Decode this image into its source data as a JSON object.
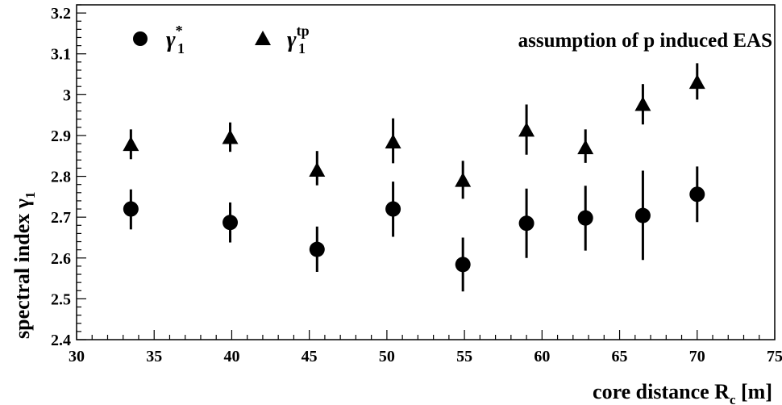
{
  "chart_data": {
    "type": "scatter",
    "title": "assumption of p induced EAS",
    "xlabel": {
      "main": "core distance R",
      "sub": "c",
      "unit": " [m]"
    },
    "ylabel": {
      "main": "spectral index γ",
      "sub": "1"
    },
    "xlim": [
      30,
      75
    ],
    "ylim": [
      2.4,
      3.22
    ],
    "x_ticks": [
      30,
      35,
      40,
      45,
      50,
      55,
      60,
      65,
      70,
      75
    ],
    "x_tick_labels": [
      "30",
      "35",
      "40",
      "45",
      "50",
      "55",
      "60",
      "65",
      "70",
      "75"
    ],
    "y_ticks": [
      2.4,
      2.5,
      2.6,
      2.7,
      2.8,
      2.9,
      3.0,
      3.1,
      3.2
    ],
    "y_tick_labels": [
      "2.4",
      "2.5",
      "2.6",
      "2.7",
      "2.8",
      "2.9",
      "3",
      "3.1",
      "3.2"
    ],
    "grid": false,
    "legend_position": "top-left",
    "series": [
      {
        "name": "γ*1",
        "legend": {
          "base": "γ",
          "sup": "*",
          "sub": "1"
        },
        "marker": "circle",
        "color": "#000000",
        "points": [
          {
            "x": 33.5,
            "y": 2.72,
            "err_low": 2.67,
            "err_high": 2.768
          },
          {
            "x": 39.9,
            "y": 2.687,
            "err_low": 2.638,
            "err_high": 2.736
          },
          {
            "x": 45.5,
            "y": 2.621,
            "err_low": 2.566,
            "err_high": 2.677
          },
          {
            "x": 50.4,
            "y": 2.72,
            "err_low": 2.652,
            "err_high": 2.787
          },
          {
            "x": 54.9,
            "y": 2.584,
            "err_low": 2.518,
            "err_high": 2.65
          },
          {
            "x": 59.0,
            "y": 2.685,
            "err_low": 2.6,
            "err_high": 2.77
          },
          {
            "x": 62.8,
            "y": 2.698,
            "err_low": 2.618,
            "err_high": 2.777
          },
          {
            "x": 66.5,
            "y": 2.704,
            "err_low": 2.595,
            "err_high": 2.814
          },
          {
            "x": 70.0,
            "y": 2.756,
            "err_low": 2.688,
            "err_high": 2.824
          }
        ]
      },
      {
        "name": "γtp1",
        "legend": {
          "base": "γ",
          "sup": "tp",
          "sub": "1"
        },
        "marker": "triangle",
        "color": "#000000",
        "points": [
          {
            "x": 33.5,
            "y": 2.876,
            "err_low": 2.842,
            "err_high": 2.915
          },
          {
            "x": 39.9,
            "y": 2.893,
            "err_low": 2.86,
            "err_high": 2.932
          },
          {
            "x": 45.5,
            "y": 2.813,
            "err_low": 2.778,
            "err_high": 2.862
          },
          {
            "x": 50.4,
            "y": 2.882,
            "err_low": 2.832,
            "err_high": 2.942
          },
          {
            "x": 54.9,
            "y": 2.788,
            "err_low": 2.745,
            "err_high": 2.838
          },
          {
            "x": 59.0,
            "y": 2.911,
            "err_low": 2.853,
            "err_high": 2.976
          },
          {
            "x": 62.8,
            "y": 2.868,
            "err_low": 2.833,
            "err_high": 2.915
          },
          {
            "x": 66.5,
            "y": 2.974,
            "err_low": 2.927,
            "err_high": 3.026
          },
          {
            "x": 70.0,
            "y": 3.028,
            "err_low": 2.988,
            "err_high": 3.077
          }
        ]
      }
    ]
  }
}
